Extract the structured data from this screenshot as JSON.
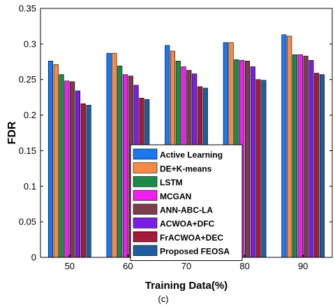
{
  "chart_data": {
    "type": "bar",
    "categories": [
      "50",
      "60",
      "70",
      "80",
      "90"
    ],
    "xlabel": "Training Data(%)",
    "ylabel": "FDR",
    "ylim": [
      0,
      0.35
    ],
    "yticks": [
      "0",
      "0.05",
      "0.1",
      "0.15",
      "0.2",
      "0.25",
      "0.3",
      "0.35"
    ],
    "grid": false,
    "legend_position": "bottom-center",
    "caption": "(c)",
    "series": [
      {
        "name": "Active Learning",
        "color": "#1a78f2",
        "values": [
          0.276,
          0.287,
          0.298,
          0.302,
          0.313
        ]
      },
      {
        "name": "DE+K-means",
        "color": "#f58b45",
        "values": [
          0.271,
          0.287,
          0.29,
          0.302,
          0.311
        ]
      },
      {
        "name": "LSTM",
        "color": "#1e8a4a",
        "values": [
          0.257,
          0.269,
          0.276,
          0.278,
          0.285
        ]
      },
      {
        "name": "MCGAN",
        "color": "#f01ef0",
        "values": [
          0.248,
          0.257,
          0.268,
          0.277,
          0.285
        ]
      },
      {
        "name": "ANN-ABC-LA",
        "color": "#7b3c4c",
        "values": [
          0.247,
          0.255,
          0.263,
          0.276,
          0.283
        ]
      },
      {
        "name": "ACWOA+DFC",
        "color": "#7a1ee6",
        "values": [
          0.234,
          0.242,
          0.258,
          0.268,
          0.277
        ]
      },
      {
        "name": "FrACWOA+DEC",
        "color": "#a31a3a",
        "values": [
          0.216,
          0.224,
          0.24,
          0.25,
          0.259
        ]
      },
      {
        "name": "Proposed FEOSA",
        "color": "#1d5f9e",
        "values": [
          0.214,
          0.222,
          0.238,
          0.249,
          0.257
        ]
      }
    ]
  }
}
